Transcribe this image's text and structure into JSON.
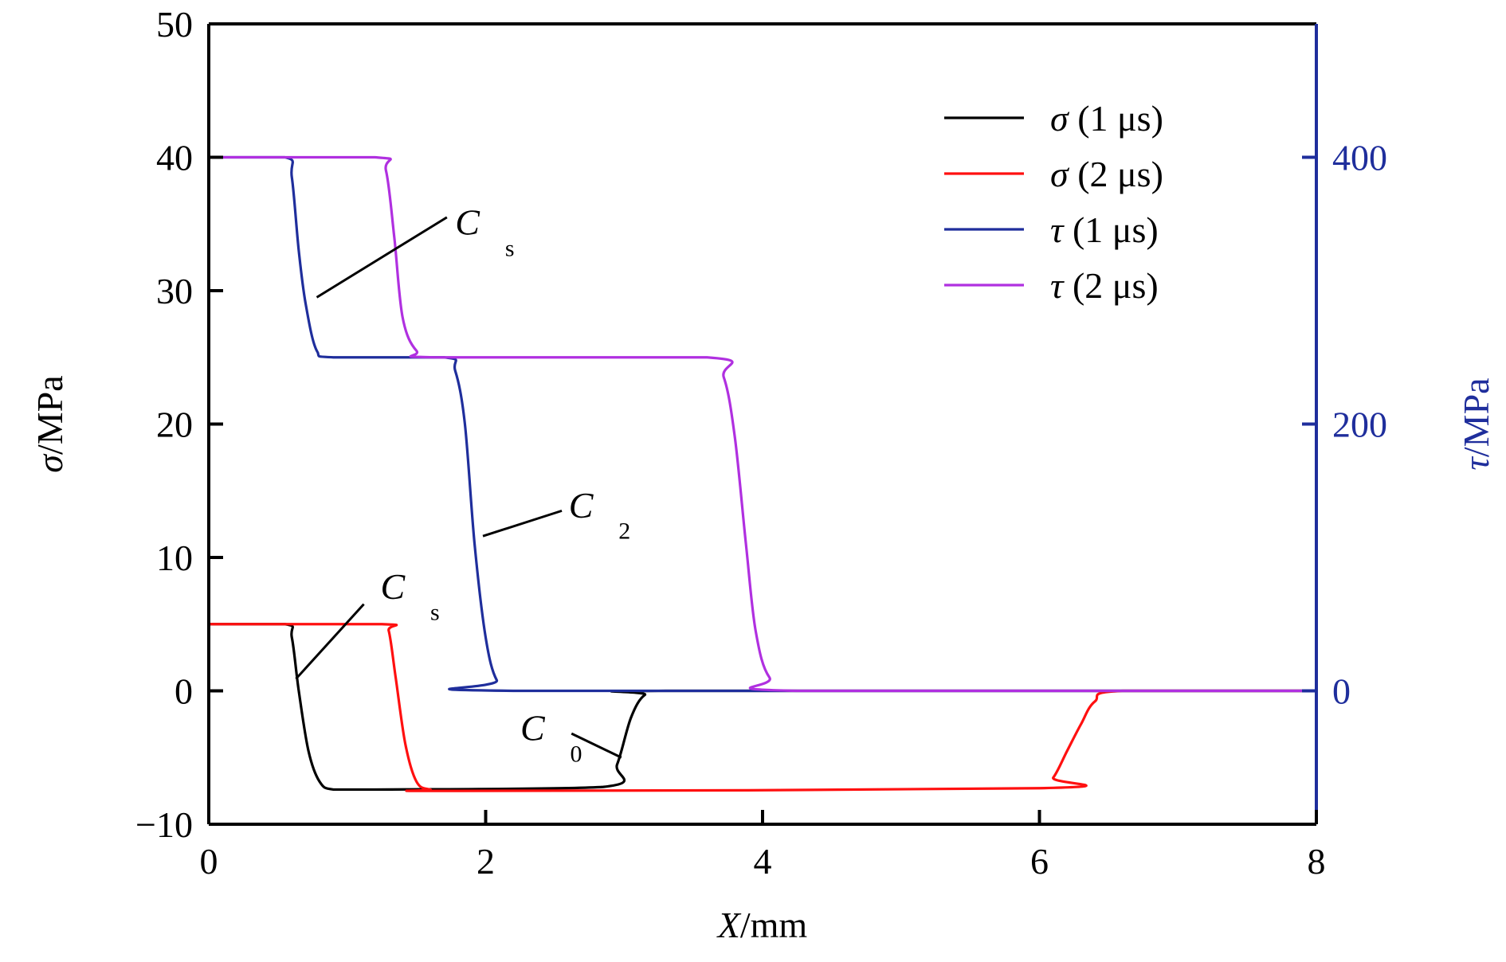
{
  "chart_data": {
    "type": "line",
    "xlabel": {
      "var": "X",
      "unit": "/mm"
    },
    "ylabel_left": {
      "var": "σ",
      "unit": "/MPa"
    },
    "ylabel_right": {
      "var": "τ",
      "unit": "/MPa"
    },
    "xlim": [
      0,
      8
    ],
    "ylim_left": [
      -10,
      50
    ],
    "ylim_right": [
      -100,
      500
    ],
    "x_ticks": [
      "0",
      "2",
      "4",
      "6",
      "8"
    ],
    "y_left_ticks": [
      "50",
      "40",
      "30",
      "20",
      "10",
      "0",
      "−10"
    ],
    "y_right_ticks": [
      "400",
      "200",
      "0"
    ],
    "grid": false,
    "legend_position": "top-right",
    "colors": {
      "axis": "#000000",
      "right_axis": "#1f2e9c"
    },
    "series": [
      {
        "name": "σ (1 μs)",
        "var": "σ",
        "time": "(1 μs)",
        "color": "#000000",
        "axis": "left",
        "x": [
          0,
          0.55,
          0.6,
          0.65,
          0.72,
          0.8,
          0.9,
          1.2,
          2.85,
          2.95,
          3.05,
          3.15,
          3.3,
          8
        ],
        "y": [
          5,
          5,
          4,
          0,
          -4.5,
          -6.8,
          -7.4,
          -7.4,
          -7.2,
          -5.5,
          -2,
          -0.3,
          0,
          0
        ]
      },
      {
        "name": "σ (2 μs)",
        "var": "σ",
        "time": "(2 μs)",
        "color": "#ff1010",
        "axis": "left",
        "x": [
          0,
          1.25,
          1.3,
          1.35,
          1.42,
          1.5,
          1.6,
          1.8,
          6.0,
          6.1,
          6.2,
          6.3,
          6.4,
          6.6,
          8
        ],
        "y": [
          5,
          5,
          4.5,
          1,
          -4,
          -6.8,
          -7.4,
          -7.5,
          -7.3,
          -6.5,
          -4.5,
          -2.5,
          -0.8,
          0,
          0
        ]
      },
      {
        "name": "τ (1 μs)",
        "var": "τ",
        "time": "(1 μs)",
        "color": "#1f2e9c",
        "axis": "right",
        "x": [
          0,
          0.55,
          0.6,
          0.65,
          0.7,
          0.78,
          0.9,
          1.7,
          1.78,
          1.85,
          1.92,
          2.0,
          2.08,
          2.2,
          8
        ],
        "y": [
          400,
          400,
          385,
          330,
          290,
          255,
          250,
          250,
          240,
          200,
          110,
          40,
          8,
          0,
          0
        ]
      },
      {
        "name": "τ (2 μs)",
        "var": "τ",
        "time": "(2 μs)",
        "color": "#b030e0",
        "axis": "right",
        "x": [
          0,
          1.2,
          1.28,
          1.34,
          1.4,
          1.5,
          1.65,
          3.6,
          3.72,
          3.8,
          3.88,
          3.95,
          4.05,
          4.25,
          8
        ],
        "y": [
          400,
          400,
          390,
          340,
          280,
          255,
          250,
          250,
          235,
          190,
          110,
          45,
          10,
          0,
          0
        ]
      }
    ],
    "annotations": [
      {
        "main": "C",
        "sub": "s",
        "x": 1.78,
        "y": 34.2,
        "sub_x_off": 0.36,
        "sub_y_off": -1.6,
        "line": [
          1.72,
          35.5,
          0.78,
          29.5
        ]
      },
      {
        "main": "C",
        "sub": "2",
        "x": 2.6,
        "y": 13,
        "sub_x_off": 0.36,
        "sub_y_off": -1.6,
        "line": [
          2.55,
          13.5,
          1.98,
          11.6
        ]
      },
      {
        "main": "C",
        "sub": "s",
        "x": 1.24,
        "y": 6.9,
        "sub_x_off": 0.36,
        "sub_y_off": -1.6,
        "line": [
          1.12,
          6.5,
          0.63,
          0.9
        ]
      },
      {
        "main": "C",
        "sub": "0",
        "x": 2.25,
        "y": -3.7,
        "sub_x_off": 0.36,
        "sub_y_off": -1.6,
        "line": [
          2.62,
          -3.2,
          2.98,
          -5.0
        ]
      }
    ]
  }
}
